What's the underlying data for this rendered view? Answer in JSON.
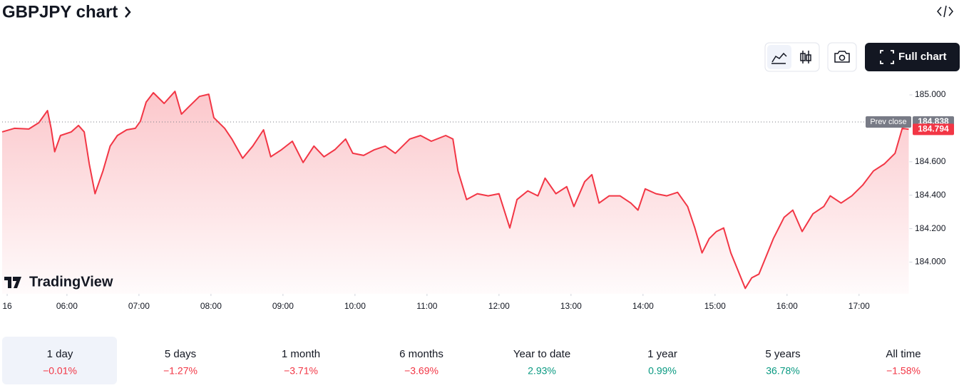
{
  "header": {
    "title": "GBPJPY chart",
    "button": "Full chart"
  },
  "chart_data": {
    "type": "line",
    "x": [
      5.1,
      5.27,
      5.47,
      5.61,
      5.73,
      5.78,
      5.83,
      5.91,
      6.06,
      6.16,
      6.24,
      6.31,
      6.39,
      6.5,
      6.6,
      6.7,
      6.83,
      6.95,
      7.02,
      7.1,
      7.2,
      7.35,
      7.5,
      7.59,
      7.69,
      7.84,
      7.97,
      8.04,
      8.19,
      8.29,
      8.44,
      8.58,
      8.73,
      8.83,
      8.98,
      9.13,
      9.28,
      9.43,
      9.57,
      9.72,
      9.87,
      9.97,
      10.12,
      10.27,
      10.42,
      10.56,
      10.76,
      10.91,
      11.06,
      11.26,
      11.36,
      11.43,
      11.55,
      11.7,
      11.85,
      12.0,
      12.15,
      12.25,
      12.4,
      12.54,
      12.64,
      12.79,
      12.94,
      13.04,
      13.19,
      13.29,
      13.39,
      13.53,
      13.68,
      13.83,
      13.93,
      14.03,
      14.18,
      14.33,
      14.48,
      14.62,
      14.72,
      14.82,
      14.92,
      15.02,
      15.12,
      15.22,
      15.32,
      15.42,
      15.51,
      15.61,
      15.71,
      15.81,
      15.96,
      16.08,
      16.21,
      16.36,
      16.51,
      16.6,
      16.75,
      16.9,
      17.05,
      17.2,
      17.35,
      17.5,
      17.6,
      17.69
    ],
    "values": [
      184.779,
      184.8,
      184.796,
      184.834,
      184.906,
      184.8,
      184.66,
      184.757,
      184.779,
      184.817,
      184.779,
      184.587,
      184.409,
      184.545,
      184.694,
      184.757,
      184.791,
      184.8,
      184.843,
      184.957,
      185.013,
      184.949,
      185.021,
      184.885,
      184.928,
      184.991,
      185.004,
      184.864,
      184.8,
      184.736,
      184.621,
      184.694,
      184.791,
      184.63,
      184.672,
      184.723,
      184.596,
      184.694,
      184.63,
      184.672,
      184.736,
      184.651,
      184.638,
      184.672,
      184.694,
      184.651,
      184.736,
      184.757,
      184.723,
      184.757,
      184.736,
      184.545,
      184.374,
      184.409,
      184.396,
      184.409,
      184.204,
      184.374,
      184.426,
      184.396,
      184.502,
      184.409,
      184.451,
      184.332,
      184.481,
      184.523,
      184.353,
      184.396,
      184.396,
      184.353,
      184.311,
      184.438,
      184.409,
      184.396,
      184.417,
      184.332,
      184.204,
      184.055,
      184.14,
      184.183,
      184.204,
      184.055,
      183.949,
      183.843,
      183.906,
      183.928,
      184.034,
      184.14,
      184.268,
      184.311,
      184.183,
      184.289,
      184.332,
      184.396,
      184.353,
      184.396,
      184.46,
      184.545,
      184.587,
      184.651,
      184.8,
      184.794
    ],
    "color": "#f23645",
    "xlim": [
      5.1,
      17.7
    ],
    "ylim": [
      183.81,
      185.077
    ],
    "xticks": [
      {
        "value": 5.17,
        "label": "16"
      },
      {
        "value": 6,
        "label": "06:00"
      },
      {
        "value": 7,
        "label": "07:00"
      },
      {
        "value": 8,
        "label": "08:00"
      },
      {
        "value": 9,
        "label": "09:00"
      },
      {
        "value": 10,
        "label": "10:00"
      },
      {
        "value": 11,
        "label": "11:00"
      },
      {
        "value": 12,
        "label": "12:00"
      },
      {
        "value": 13,
        "label": "13:00"
      },
      {
        "value": 14,
        "label": "14:00"
      },
      {
        "value": 15,
        "label": "15:00"
      },
      {
        "value": 16,
        "label": "16:00"
      },
      {
        "value": 17,
        "label": "17:00"
      }
    ],
    "yticks": [
      {
        "value": 184,
        "label": "184.000"
      },
      {
        "value": 184.2,
        "label": "184.200"
      },
      {
        "value": 184.4,
        "label": "184.400"
      },
      {
        "value": 184.6,
        "label": "184.600"
      },
      {
        "value": 185,
        "label": "185.000"
      }
    ],
    "grid": false,
    "prev_close": 184.838,
    "prev_close_label": "Prev close",
    "watermark": "TradingView"
  },
  "periods": [
    {
      "label": "1 day",
      "change": "−0.01%"
    },
    {
      "label": "5 days",
      "change": "−1.27%"
    },
    {
      "label": "1 month",
      "change": "−3.71%"
    },
    {
      "label": "6 months",
      "change": "−3.69%"
    },
    {
      "label": "Year to date",
      "change": "2.93%"
    },
    {
      "label": "1 year",
      "change": "0.99%"
    },
    {
      "label": "5 years",
      "change": "36.78%"
    },
    {
      "label": "All time",
      "change": "−1.58%"
    }
  ]
}
